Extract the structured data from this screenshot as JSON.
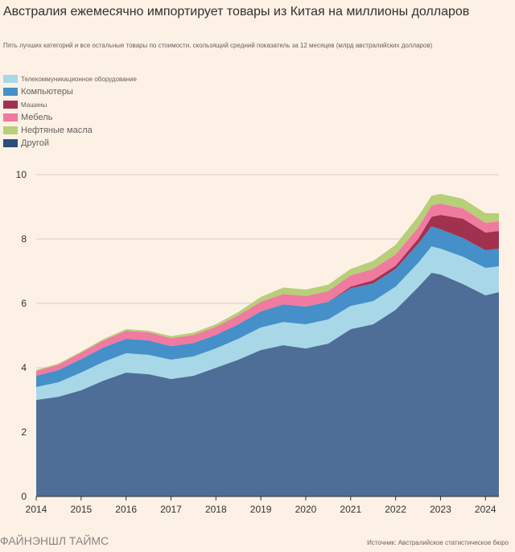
{
  "header": {
    "title": "Австралия ежемесячно импортирует товары из Китая на миллионы долларов",
    "subtitle": "Пять лучших категорий и все остальные товары по стоимости, скользящий средний показатель за 12 месяцев (млрд австралийских долларов)"
  },
  "footer": {
    "brand": "ФАЙНЭНШЛ ТАЙМС",
    "source": "Источник: Австралийское статистическое бюро"
  },
  "chart_data": {
    "type": "area",
    "stacked": true,
    "title": "Австралия ежемесячно импортирует товары из Китая на миллионы долларов",
    "subtitle": "Пять лучших категорий и все остальные товары по стоимости, скользящий средний показатель за 12 месяцев (млрд австралийских долларов)",
    "xlabel": "",
    "ylabel": "",
    "xlim": [
      2014.0,
      2024.3
    ],
    "ylim": [
      0,
      10
    ],
    "y_ticks": [
      0,
      2,
      4,
      6,
      8,
      10
    ],
    "x_ticks": [
      "2014",
      "2015",
      "2016",
      "2017",
      "2018",
      "2019",
      "2020",
      "2021",
      "2022",
      "2023",
      "2024"
    ],
    "grid": "horizontal",
    "legend_position": "top-left",
    "x": [
      2014.0,
      2014.5,
      2015.0,
      2015.5,
      2016.0,
      2016.5,
      2017.0,
      2017.5,
      2018.0,
      2018.5,
      2019.0,
      2019.5,
      2020.0,
      2020.5,
      2021.0,
      2021.5,
      2022.0,
      2022.5,
      2022.8,
      2023.0,
      2023.5,
      2024.0,
      2024.3
    ],
    "series": [
      {
        "name": "Другой",
        "color": "#4e6e97",
        "values": [
          3.0,
          3.1,
          3.3,
          3.6,
          3.85,
          3.8,
          3.65,
          3.75,
          4.0,
          4.25,
          4.55,
          4.7,
          4.6,
          4.75,
          5.2,
          5.35,
          5.8,
          6.5,
          6.95,
          6.9,
          6.6,
          6.25,
          6.35
        ]
      },
      {
        "name": "Телекоммуникационное оборудование",
        "color": "#a8d8e8",
        "values": [
          0.4,
          0.45,
          0.55,
          0.58,
          0.6,
          0.6,
          0.6,
          0.6,
          0.6,
          0.65,
          0.7,
          0.72,
          0.75,
          0.75,
          0.72,
          0.72,
          0.72,
          0.75,
          0.82,
          0.8,
          0.85,
          0.85,
          0.8
        ]
      },
      {
        "name": "Компьютеры",
        "color": "#4590c8",
        "values": [
          0.35,
          0.38,
          0.42,
          0.45,
          0.45,
          0.45,
          0.42,
          0.42,
          0.42,
          0.45,
          0.5,
          0.55,
          0.55,
          0.55,
          0.55,
          0.55,
          0.55,
          0.6,
          0.62,
          0.6,
          0.58,
          0.55,
          0.55
        ]
      },
      {
        "name": "Машины",
        "color": "#a1324f",
        "values": [
          0.0,
          0.0,
          0.0,
          0.0,
          0.0,
          0.0,
          0.0,
          0.0,
          0.0,
          0.0,
          0.0,
          0.0,
          0.0,
          0.0,
          0.05,
          0.1,
          0.1,
          0.15,
          0.3,
          0.45,
          0.6,
          0.55,
          0.55
        ]
      },
      {
        "name": "Мебель",
        "color": "#f07aa0",
        "values": [
          0.15,
          0.17,
          0.2,
          0.22,
          0.25,
          0.25,
          0.25,
          0.25,
          0.25,
          0.28,
          0.3,
          0.32,
          0.33,
          0.33,
          0.35,
          0.35,
          0.35,
          0.35,
          0.35,
          0.35,
          0.32,
          0.3,
          0.3
        ]
      },
      {
        "name": "Нефтяные масла",
        "color": "#b7cf78",
        "values": [
          0.03,
          0.03,
          0.03,
          0.04,
          0.05,
          0.05,
          0.06,
          0.07,
          0.08,
          0.1,
          0.15,
          0.2,
          0.2,
          0.2,
          0.2,
          0.25,
          0.3,
          0.35,
          0.3,
          0.3,
          0.3,
          0.3,
          0.25
        ]
      }
    ]
  }
}
